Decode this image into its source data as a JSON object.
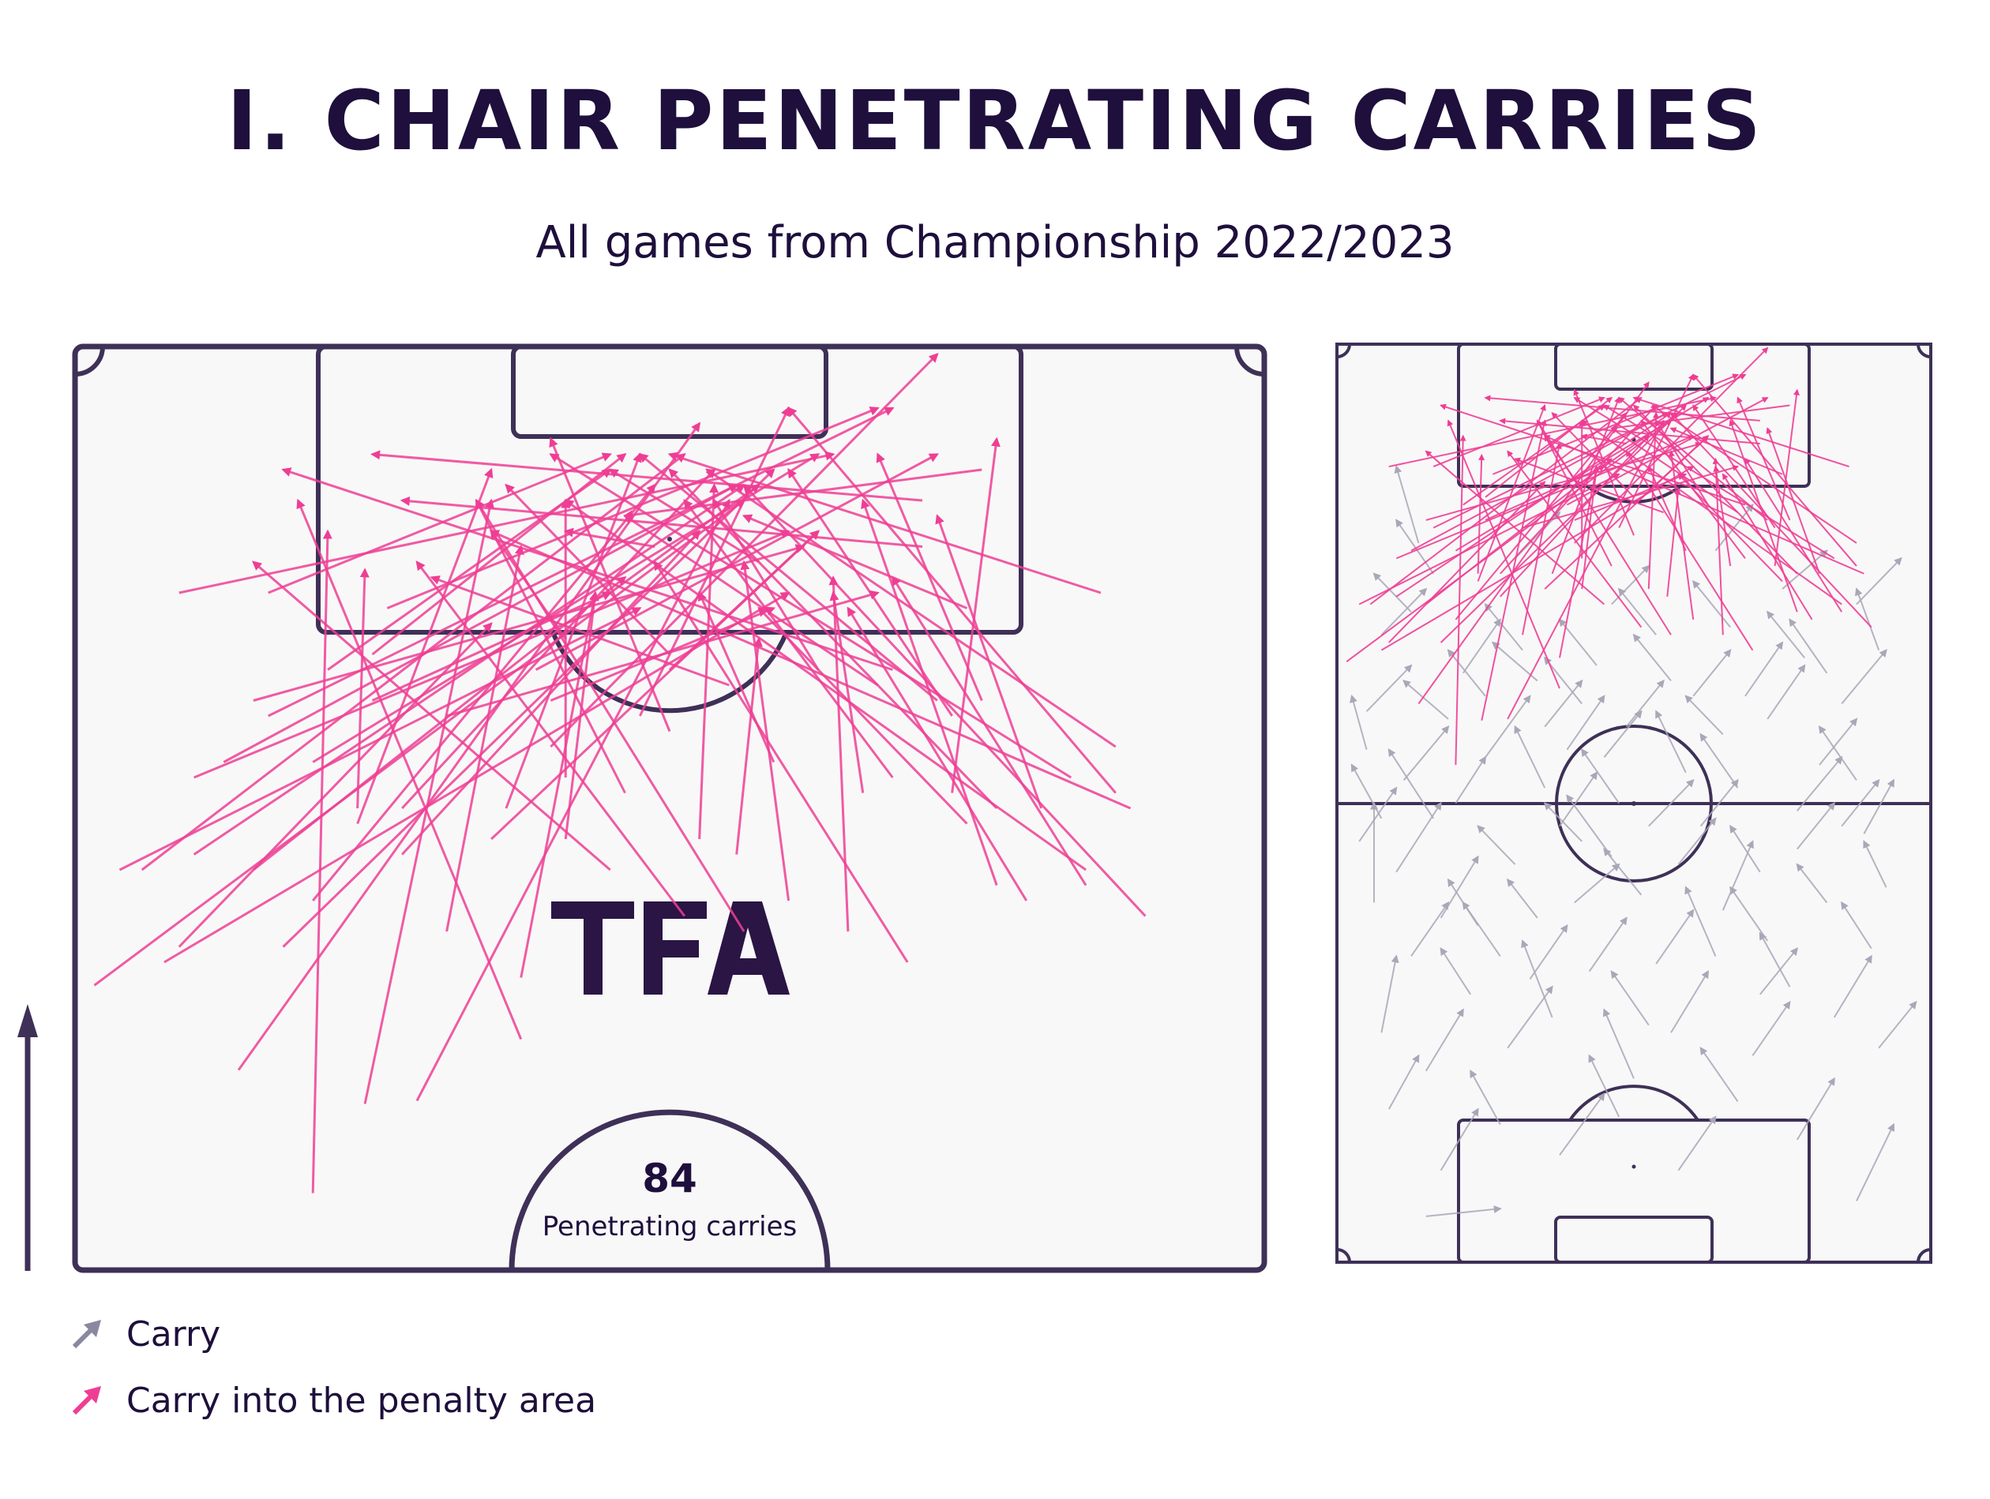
{
  "title": "I. CHAIR PENETRATING CARRIES",
  "subtitle": "All games from Championship 2022/2023",
  "colors": {
    "navy": "#3e3057",
    "text": "#1e0f3c",
    "carry": "#a9a7b8",
    "penalty_carry": "#ee3e94",
    "pitch_fill": "#f8f8f8"
  },
  "watermark": "TFA",
  "summary": {
    "count": "84",
    "label": "Penetrating carries"
  },
  "legend": [
    {
      "label": "Carry",
      "icon": "grey-arrow-icon"
    },
    {
      "label": "Carry into the penalty area",
      "icon": "pink-arrow-icon"
    }
  ],
  "chart_data": [
    {
      "type": "scatter",
      "description_of_marks": "arrow segments from carry start to carry end",
      "view": "attacking half (top = opponent goal)",
      "axis_units": "pitch yards, x = width 0-80, y = distance from own goal 0-120",
      "series": [
        {
          "name": "Carry into the penalty area",
          "color": "#ee3e94",
          "segments": [
            [
              1.3,
              78.5,
              45,
              110
            ],
            [
              6,
              80,
              48,
              104
            ],
            [
              19.5,
              70.8,
              28,
              110
            ],
            [
              16,
              65,
              17,
              108
            ],
            [
              11,
              73,
              42,
              115
            ],
            [
              4.5,
              86,
              41,
              113
            ],
            [
              8,
              87,
              45,
              111
            ],
            [
              19,
              90,
              19.5,
              105.5
            ],
            [
              30,
              75,
              15,
              110
            ],
            [
              36,
              86,
              12,
              106
            ],
            [
              41,
              83,
              23,
              106
            ],
            [
              16,
              84,
              39,
              111
            ],
            [
              3,
              86,
              38,
              103
            ],
            [
              25,
              82,
              30,
              107
            ],
            [
              10,
              93,
              44.5,
              111
            ],
            [
              23,
              71,
              44,
              110
            ],
            [
              37,
              91,
              27,
              110
            ],
            [
              56,
              80,
              39,
              106
            ],
            [
              55,
              99,
              14,
              112
            ],
            [
              13,
              104,
              36,
              113
            ],
            [
              19,
              89,
              28,
              112
            ],
            [
              20,
              100,
              37,
              113
            ],
            [
              7,
              104,
              51,
              113
            ],
            [
              29,
              90,
              38,
              113
            ],
            [
              40,
              95,
              32,
              114
            ],
            [
              38,
              96,
              48,
              116
            ],
            [
              22,
              90,
              43,
              112
            ],
            [
              42,
              88,
              43,
              111
            ],
            [
              13,
              96,
              55,
              116
            ],
            [
              32,
              94,
              58,
              119.5
            ],
            [
              21,
              103,
              54,
              116
            ],
            [
              44.5,
              87,
              46,
              101
            ],
            [
              58,
              97,
              38,
              113
            ],
            [
              62,
              90,
              40,
              112
            ],
            [
              55,
              92,
              41,
              110
            ],
            [
              67,
              92,
              32,
              113
            ],
            [
              70,
              94,
              42.5,
              112
            ],
            [
              71,
              90,
              28,
              108
            ],
            [
              48,
              84,
              45,
              106
            ],
            [
              72,
              83,
              45,
              111
            ],
            [
              52,
              82,
              51,
              105
            ],
            [
              59,
              96,
              48,
              112
            ],
            [
              62,
              85,
              53,
              110
            ],
            [
              68,
              85,
              55,
              105
            ],
            [
              59,
              91,
              62,
              114
            ],
            [
              61,
              97,
              54,
              113
            ],
            [
              60,
              89,
              46,
              103
            ],
            [
              7,
              81,
              28,
              102
            ],
            [
              30,
              79,
              35,
              104
            ],
            [
              70,
              91,
              48,
              116
            ],
            [
              45,
              82,
              27,
              110
            ],
            [
              64,
              84,
              52,
              103
            ],
            [
              33,
              92,
              33,
              110
            ],
            [
              28,
              88,
              50,
              108
            ],
            [
              68,
              86,
              33,
              110
            ],
            [
              8,
              92,
              48,
              108
            ],
            [
              14,
              81,
              47,
              112
            ],
            [
              12,
              86,
              37,
              105
            ],
            [
              25,
              96,
              54,
              104
            ],
            [
              16,
              93,
              50,
              113
            ],
            [
              33,
              101,
              28,
              108
            ],
            [
              60,
              103,
              45,
              109
            ],
            [
              69,
              104,
              40,
              113
            ],
            [
              57,
              107,
              22,
              110
            ],
            [
              17,
              99,
              36,
              112
            ],
            [
              57,
              110,
              20,
              113
            ],
            [
              33,
              88,
              35,
              104
            ],
            [
              40,
              100,
              29,
              111
            ],
            [
              46,
              106,
              36,
              112
            ],
            [
              47,
              93,
              42,
              104
            ],
            [
              44,
              98,
              24,
              105
            ],
            [
              65,
              90,
              58,
              109
            ],
            [
              54,
              98,
              37,
              109
            ],
            [
              39,
              107,
              33,
              108
            ],
            [
              31,
              99,
              58,
              113
            ],
            [
              12,
              97,
              49,
              107
            ],
            [
              32,
              97,
              47,
              103
            ],
            [
              61,
              112,
              37,
              109
            ],
            [
              22,
              87,
              42,
              108
            ],
            [
              50,
              99,
              43,
              110
            ],
            [
              20,
              97,
              36,
              104
            ],
            [
              53,
              91,
              51,
              104
            ],
            [
              36,
              104,
              46,
              111
            ],
            [
              40,
              99,
              50,
              108
            ]
          ]
        },
        {
          "name": "Carry",
          "color": "#a9a7b8",
          "segments": [
            [
              11,
              94,
              8,
              104
            ],
            [
              5,
              47,
              5,
              60
            ],
            [
              8,
              51,
              14,
              60
            ],
            [
              13,
              58,
              7,
              67
            ],
            [
              19,
              44,
              15,
              50
            ],
            [
              24,
              52,
              19,
              57
            ],
            [
              28,
              62,
              24,
              70
            ],
            [
              32,
              47,
              38,
              52
            ],
            [
              37,
              53,
              31,
              61
            ],
            [
              42,
              57,
              48,
              63
            ],
            [
              47,
              64,
              43,
              72
            ],
            [
              52,
              46,
              56,
              55
            ],
            [
              57,
              51,
              53,
              57
            ],
            [
              62,
              59,
              68,
              66
            ],
            [
              66,
              47,
              62,
              52
            ],
            [
              71,
              56,
              75,
              63
            ],
            [
              74,
              49,
              71,
              55
            ],
            [
              6,
              30,
              8,
              40
            ],
            [
              12,
              25,
              17,
              33
            ],
            [
              18,
              35,
              14,
              41
            ],
            [
              23,
              28,
              29,
              36
            ],
            [
              29,
              32,
              25,
              42
            ],
            [
              34,
              38,
              39,
              45
            ],
            [
              40,
              24,
              36,
              33
            ],
            [
              45,
              30,
              50,
              38
            ],
            [
              51,
              40,
              47,
              49
            ],
            [
              56,
              27,
              61,
              34
            ],
            [
              61,
              36,
              57,
              43
            ],
            [
              67,
              32,
              72,
              40
            ],
            [
              72,
              41,
              68,
              47
            ],
            [
              9,
              63,
              15,
              70
            ],
            [
              15,
              71,
              9,
              76
            ],
            [
              20,
              66,
              26,
              74
            ],
            [
              27,
              76,
              21,
              81
            ],
            [
              31,
              67,
              36,
              74
            ],
            [
              35,
              78,
              30,
              84
            ],
            [
              39,
              70,
              44,
              76
            ],
            [
              43,
              82,
              38,
              88
            ],
            [
              48,
              74,
              53,
              80
            ],
            [
              53,
              83,
              48,
              89
            ],
            [
              58,
              71,
              63,
              78
            ],
            [
              63,
              79,
              58,
              85
            ],
            [
              68,
              73,
              74,
              80
            ],
            [
              73,
              80,
              70,
              88
            ],
            [
              4,
              72,
              10,
              78
            ],
            [
              10,
              85,
              5,
              90
            ],
            [
              17,
              77,
              22,
              84
            ],
            [
              25,
              80,
              20,
              86
            ],
            [
              33,
              73,
              28,
              79
            ],
            [
              37,
              86,
              42,
              91
            ],
            [
              45,
              76,
              40,
              82
            ],
            [
              55,
              74,
              60,
              81
            ],
            [
              60,
              88,
              66,
              93
            ],
            [
              66,
              77,
              61,
              84
            ],
            [
              70,
              86,
              76,
              92
            ],
            [
              6,
              58,
              2,
              65
            ],
            [
              14,
              45,
              19,
              53
            ],
            [
              22,
              40,
              17,
              47
            ],
            [
              30,
              57,
              35,
              64
            ],
            [
              38,
              60,
              33,
              67
            ],
            [
              46,
              52,
              51,
              58
            ],
            [
              54,
              62,
              49,
              69
            ],
            [
              62,
              54,
              67,
              60
            ],
            [
              70,
              63,
              65,
              70
            ],
            [
              7,
              20,
              11,
              27
            ],
            [
              14,
              12,
              19,
              20
            ],
            [
              22,
              18,
              18,
              25
            ],
            [
              30,
              14,
              36,
              22
            ],
            [
              38,
              19,
              34,
              27
            ],
            [
              46,
              12,
              51,
              19
            ],
            [
              54,
              21,
              49,
              28
            ],
            [
              62,
              16,
              67,
              24
            ],
            [
              70,
              8,
              75,
              18
            ],
            [
              6,
              82,
              12,
              88
            ],
            [
              13,
              90,
              8,
              97
            ],
            [
              24,
              92,
              30,
              98
            ],
            [
              51,
              93,
              56,
              99
            ],
            [
              3,
              55,
              8,
              62
            ],
            [
              27,
              45,
              23,
              50
            ],
            [
              43,
              39,
              48,
              46
            ],
            [
              58,
              42,
              53,
              49
            ],
            [
              73,
              28,
              78,
              34
            ],
            [
              16,
              60,
              20,
              66
            ],
            [
              33,
              55,
              28,
              60
            ],
            [
              49,
              57,
              54,
              63
            ],
            [
              65,
              65,
              70,
              71
            ],
            [
              10,
              40,
              15,
              47
            ],
            [
              26,
              37,
              31,
              44
            ],
            [
              42,
              31,
              37,
              38
            ],
            [
              57,
              35,
              62,
              41
            ],
            [
              4,
              67,
              2,
              74
            ],
            [
              20,
              74,
              15,
              80
            ],
            [
              36,
              66,
              41,
              72
            ],
            [
              52,
              69,
              47,
              74
            ],
            [
              68,
              57,
              73,
              63
            ],
            [
              12,
              6,
              22,
              7
            ],
            [
              28,
              70,
              33,
              76
            ],
            [
              41,
              48,
              36,
              54
            ]
          ]
        }
      ]
    }
  ]
}
